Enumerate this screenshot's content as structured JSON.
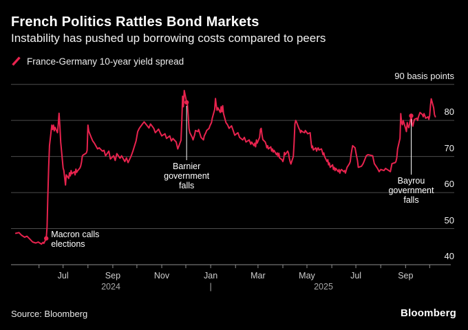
{
  "header": {
    "title": "French Politics Rattles Bond Markets",
    "subtitle": "Instability has pushed up borrowing costs compared to peers"
  },
  "legend": {
    "marker_color": "#e8234e",
    "label": "France-Germany 10-year yield spread"
  },
  "footer": {
    "source": "Source: Bloomberg",
    "brand": "Bloomberg"
  },
  "chart_data": {
    "type": "line",
    "series_name": "France-Germany 10-year yield spread",
    "unit": "basis points",
    "line_color": "#e8234e",
    "grid_color": "#4d4d4d",
    "axis_color": "#8f8f8f",
    "ylim": [
      40,
      90
    ],
    "grid": true,
    "legend_position": "top-left",
    "y_ticks": [
      {
        "value": 90,
        "label": "90 basis points"
      },
      {
        "value": 80,
        "label": "80"
      },
      {
        "value": 70,
        "label": "70"
      },
      {
        "value": 60,
        "label": "60"
      },
      {
        "value": 50,
        "label": "50"
      },
      {
        "value": 40,
        "label": "40"
      }
    ],
    "x_ticks": [
      {
        "date": "2024-06-01",
        "label": ""
      },
      {
        "date": "2024-07-01",
        "label": "Jul"
      },
      {
        "date": "2024-08-01",
        "label": ""
      },
      {
        "date": "2024-09-01",
        "label": "Sep"
      },
      {
        "date": "2024-10-01",
        "label": ""
      },
      {
        "date": "2024-11-01",
        "label": "Nov"
      },
      {
        "date": "2024-12-01",
        "label": ""
      },
      {
        "date": "2025-01-01",
        "label": "Jan"
      },
      {
        "date": "2025-02-01",
        "label": ""
      },
      {
        "date": "2025-03-01",
        "label": "Mar"
      },
      {
        "date": "2025-04-01",
        "label": ""
      },
      {
        "date": "2025-05-01",
        "label": "May"
      },
      {
        "date": "2025-06-01",
        "label": ""
      },
      {
        "date": "2025-07-01",
        "label": "Jul"
      },
      {
        "date": "2025-08-01",
        "label": ""
      },
      {
        "date": "2025-09-01",
        "label": "Sep"
      },
      {
        "date": "2025-10-01",
        "label": ""
      }
    ],
    "year_row": {
      "left": "2024",
      "divider": "|",
      "right": "2025"
    },
    "annotations": [
      {
        "id": "macron",
        "date": "2024-06-10",
        "value": 47.3,
        "lines": [
          "Macron calls",
          "elections"
        ]
      },
      {
        "id": "barnier",
        "date": "2024-12-02",
        "value": 85.0,
        "lines": [
          "Barnier",
          "government",
          "falls"
        ]
      },
      {
        "id": "bayrou",
        "date": "2025-09-08",
        "value": 81.3,
        "lines": [
          "Bayrou",
          "government",
          "falls"
        ]
      }
    ],
    "points": [
      [
        "2024-05-03",
        48.7
      ],
      [
        "2024-05-07",
        48.9
      ],
      [
        "2024-05-10",
        48.2
      ],
      [
        "2024-05-14",
        47.6
      ],
      [
        "2024-05-17",
        47.9
      ],
      [
        "2024-05-21",
        47.0
      ],
      [
        "2024-05-24",
        46.3
      ],
      [
        "2024-05-28",
        46.0
      ],
      [
        "2024-05-31",
        46.3
      ],
      [
        "2024-06-04",
        45.7
      ],
      [
        "2024-06-06",
        46.2
      ],
      [
        "2024-06-07",
        45.9
      ],
      [
        "2024-06-10",
        47.3
      ],
      [
        "2024-06-11",
        50.5
      ],
      [
        "2024-06-12",
        59.0
      ],
      [
        "2024-06-13",
        67.0
      ],
      [
        "2024-06-14",
        73.0
      ],
      [
        "2024-06-17",
        78.7
      ],
      [
        "2024-06-18",
        77.5
      ],
      [
        "2024-06-19",
        78.7
      ],
      [
        "2024-06-20",
        77.1
      ],
      [
        "2024-06-21",
        78.1
      ],
      [
        "2024-06-24",
        76.6
      ],
      [
        "2024-06-25",
        79.0
      ],
      [
        "2024-06-26",
        82.0
      ],
      [
        "2024-06-27",
        78.5
      ],
      [
        "2024-06-28",
        74.0
      ],
      [
        "2024-07-01",
        66.8
      ],
      [
        "2024-07-02",
        66.1
      ],
      [
        "2024-07-03",
        64.0
      ],
      [
        "2024-07-04",
        62.1
      ],
      [
        "2024-07-05",
        64.9
      ],
      [
        "2024-07-08",
        63.9
      ],
      [
        "2024-07-09",
        65.5
      ],
      [
        "2024-07-10",
        64.6
      ],
      [
        "2024-07-11",
        66.1
      ],
      [
        "2024-07-12",
        65.2
      ],
      [
        "2024-07-15",
        65.8
      ],
      [
        "2024-07-16",
        64.9
      ],
      [
        "2024-07-17",
        66.5
      ],
      [
        "2024-07-18",
        65.6
      ],
      [
        "2024-07-19",
        66.0
      ],
      [
        "2024-07-22",
        66.8
      ],
      [
        "2024-07-23",
        67.4
      ],
      [
        "2024-07-24",
        68.5
      ],
      [
        "2024-07-25",
        70.1
      ],
      [
        "2024-07-26",
        70.4
      ],
      [
        "2024-07-29",
        70.8
      ],
      [
        "2024-07-30",
        71.0
      ],
      [
        "2024-07-31",
        71.7
      ],
      [
        "2024-08-01",
        78.7
      ],
      [
        "2024-08-02",
        77.0
      ],
      [
        "2024-08-05",
        75.3
      ],
      [
        "2024-08-07",
        74.3
      ],
      [
        "2024-08-09",
        73.7
      ],
      [
        "2024-08-13",
        72.1
      ],
      [
        "2024-08-15",
        72.4
      ],
      [
        "2024-08-19",
        71.5
      ],
      [
        "2024-08-21",
        71.7
      ],
      [
        "2024-08-23",
        70.2
      ],
      [
        "2024-08-27",
        71.5
      ],
      [
        "2024-08-29",
        69.3
      ],
      [
        "2024-09-02",
        70.2
      ],
      [
        "2024-09-04",
        68.9
      ],
      [
        "2024-09-06",
        70.8
      ],
      [
        "2024-09-10",
        69.5
      ],
      [
        "2024-09-12",
        70.2
      ],
      [
        "2024-09-16",
        68.6
      ],
      [
        "2024-09-18",
        69.6
      ],
      [
        "2024-09-20",
        68.3
      ],
      [
        "2024-09-24",
        70.2
      ],
      [
        "2024-09-26",
        71.5
      ],
      [
        "2024-09-30",
        74.3
      ],
      [
        "2024-10-02",
        76.9
      ],
      [
        "2024-10-04",
        77.8
      ],
      [
        "2024-10-08",
        79.0
      ],
      [
        "2024-10-10",
        79.6
      ],
      [
        "2024-10-14",
        78.5
      ],
      [
        "2024-10-16",
        77.9
      ],
      [
        "2024-10-18",
        79.0
      ],
      [
        "2024-10-22",
        77.8
      ],
      [
        "2024-10-24",
        76.6
      ],
      [
        "2024-10-28",
        77.6
      ],
      [
        "2024-10-30",
        76.6
      ],
      [
        "2024-11-01",
        75.7
      ],
      [
        "2024-11-05",
        76.3
      ],
      [
        "2024-11-07",
        75.0
      ],
      [
        "2024-11-11",
        75.7
      ],
      [
        "2024-11-13",
        74.3
      ],
      [
        "2024-11-15",
        75.0
      ],
      [
        "2024-11-19",
        74.0
      ],
      [
        "2024-11-21",
        72.1
      ],
      [
        "2024-11-25",
        74.5
      ],
      [
        "2024-11-26",
        80.0
      ],
      [
        "2024-11-27",
        86.7
      ],
      [
        "2024-11-28",
        83.8
      ],
      [
        "2024-11-29",
        88.3
      ],
      [
        "2024-12-02",
        85.0
      ],
      [
        "2024-12-03",
        84.5
      ],
      [
        "2024-12-04",
        81.3
      ],
      [
        "2024-12-05",
        77.8
      ],
      [
        "2024-12-06",
        76.6
      ],
      [
        "2024-12-09",
        75.3
      ],
      [
        "2024-12-10",
        74.6
      ],
      [
        "2024-12-12",
        76.0
      ],
      [
        "2024-12-13",
        77.2
      ],
      [
        "2024-12-16",
        76.9
      ],
      [
        "2024-12-17",
        77.5
      ],
      [
        "2024-12-19",
        76.0
      ],
      [
        "2024-12-20",
        75.3
      ],
      [
        "2024-12-23",
        74.6
      ],
      [
        "2024-12-24",
        75.7
      ],
      [
        "2024-12-26",
        76.6
      ],
      [
        "2024-12-27",
        77.2
      ],
      [
        "2024-12-30",
        77.8
      ],
      [
        "2024-12-31",
        78.5
      ],
      [
        "2025-01-02",
        79.4
      ],
      [
        "2025-01-03",
        80.6
      ],
      [
        "2025-01-06",
        83.0
      ],
      [
        "2025-01-07",
        86.1
      ],
      [
        "2025-01-08",
        84.1
      ],
      [
        "2025-01-09",
        82.8
      ],
      [
        "2025-01-10",
        83.5
      ],
      [
        "2025-01-13",
        82.2
      ],
      [
        "2025-01-14",
        83.8
      ],
      [
        "2025-01-15",
        82.4
      ],
      [
        "2025-01-16",
        84.1
      ],
      [
        "2025-01-17",
        81.9
      ],
      [
        "2025-01-20",
        79.4
      ],
      [
        "2025-01-22",
        78.8
      ],
      [
        "2025-01-24",
        77.8
      ],
      [
        "2025-01-27",
        78.5
      ],
      [
        "2025-01-29",
        77.2
      ],
      [
        "2025-01-31",
        75.9
      ],
      [
        "2025-02-04",
        76.6
      ],
      [
        "2025-02-06",
        75.3
      ],
      [
        "2025-02-10",
        74.6
      ],
      [
        "2025-02-12",
        75.3
      ],
      [
        "2025-02-14",
        74.0
      ],
      [
        "2025-02-18",
        74.6
      ],
      [
        "2025-02-20",
        73.4
      ],
      [
        "2025-02-21",
        74.0
      ],
      [
        "2025-02-24",
        73.0
      ],
      [
        "2025-02-25",
        73.7
      ],
      [
        "2025-02-26",
        72.7
      ],
      [
        "2025-02-27",
        74.6
      ],
      [
        "2025-02-28",
        73.7
      ],
      [
        "2025-03-03",
        75.3
      ],
      [
        "2025-03-04",
        77.5
      ],
      [
        "2025-03-05",
        77.8
      ],
      [
        "2025-03-06",
        76.0
      ],
      [
        "2025-03-07",
        74.7
      ],
      [
        "2025-03-10",
        74.0
      ],
      [
        "2025-03-11",
        73.4
      ],
      [
        "2025-03-12",
        72.4
      ],
      [
        "2025-03-13",
        73.0
      ],
      [
        "2025-03-14",
        72.1
      ],
      [
        "2025-03-17",
        72.7
      ],
      [
        "2025-03-18",
        71.5
      ],
      [
        "2025-03-19",
        72.1
      ],
      [
        "2025-03-20",
        71.2
      ],
      [
        "2025-03-21",
        71.7
      ],
      [
        "2025-03-24",
        70.5
      ],
      [
        "2025-03-25",
        71.0
      ],
      [
        "2025-03-26",
        70.0
      ],
      [
        "2025-03-27",
        70.9
      ],
      [
        "2025-03-28",
        69.6
      ],
      [
        "2025-03-31",
        69.1
      ],
      [
        "2025-04-01",
        68.6
      ],
      [
        "2025-04-02",
        69.4
      ],
      [
        "2025-04-03",
        71.1
      ],
      [
        "2025-04-04",
        70.5
      ],
      [
        "2025-04-07",
        71.5
      ],
      [
        "2025-04-08",
        70.9
      ],
      [
        "2025-04-09",
        69.6
      ],
      [
        "2025-04-10",
        68.6
      ],
      [
        "2025-04-11",
        67.9
      ],
      [
        "2025-04-14",
        70.0
      ],
      [
        "2025-04-15",
        73.7
      ],
      [
        "2025-04-16",
        79.0
      ],
      [
        "2025-04-17",
        80.0
      ],
      [
        "2025-04-18",
        79.6
      ],
      [
        "2025-04-21",
        77.8
      ],
      [
        "2025-04-22",
        77.4
      ],
      [
        "2025-04-23",
        76.6
      ],
      [
        "2025-04-24",
        77.2
      ],
      [
        "2025-04-25",
        76.9
      ],
      [
        "2025-04-28",
        76.6
      ],
      [
        "2025-04-29",
        77.2
      ],
      [
        "2025-04-30",
        76.9
      ],
      [
        "2025-05-02",
        76.3
      ],
      [
        "2025-05-05",
        76.6
      ],
      [
        "2025-05-06",
        74.3
      ],
      [
        "2025-05-07",
        72.4
      ],
      [
        "2025-05-08",
        72.9
      ],
      [
        "2025-05-09",
        71.8
      ],
      [
        "2025-05-12",
        72.4
      ],
      [
        "2025-05-13",
        71.5
      ],
      [
        "2025-05-14",
        72.1
      ],
      [
        "2025-05-15",
        72.4
      ],
      [
        "2025-05-16",
        71.8
      ],
      [
        "2025-05-19",
        72.1
      ],
      [
        "2025-05-20",
        71.5
      ],
      [
        "2025-05-21",
        70.5
      ],
      [
        "2025-05-22",
        71.0
      ],
      [
        "2025-05-23",
        70.0
      ],
      [
        "2025-05-26",
        68.6
      ],
      [
        "2025-05-27",
        69.1
      ],
      [
        "2025-05-28",
        67.7
      ],
      [
        "2025-05-29",
        68.2
      ],
      [
        "2025-05-30",
        67.0
      ],
      [
        "2025-06-02",
        67.7
      ],
      [
        "2025-06-03",
        66.4
      ],
      [
        "2025-06-04",
        67.0
      ],
      [
        "2025-06-05",
        66.1
      ],
      [
        "2025-06-06",
        66.7
      ],
      [
        "2025-06-09",
        65.8
      ],
      [
        "2025-06-10",
        66.4
      ],
      [
        "2025-06-11",
        65.4
      ],
      [
        "2025-06-12",
        66.1
      ],
      [
        "2025-06-13",
        66.4
      ],
      [
        "2025-06-16",
        65.8
      ],
      [
        "2025-06-17",
        66.1
      ],
      [
        "2025-06-18",
        65.4
      ],
      [
        "2025-06-19",
        66.2
      ],
      [
        "2025-06-20",
        67.0
      ],
      [
        "2025-06-23",
        68.0
      ],
      [
        "2025-06-24",
        68.6
      ],
      [
        "2025-06-25",
        70.5
      ],
      [
        "2025-06-26",
        71.8
      ],
      [
        "2025-06-27",
        73.0
      ],
      [
        "2025-06-30",
        72.4
      ],
      [
        "2025-07-01",
        71.1
      ],
      [
        "2025-07-02",
        70.0
      ],
      [
        "2025-07-03",
        68.9
      ],
      [
        "2025-07-04",
        67.0
      ],
      [
        "2025-07-08",
        67.3
      ],
      [
        "2025-07-10",
        68.0
      ],
      [
        "2025-07-14",
        70.2
      ],
      [
        "2025-07-16",
        70.5
      ],
      [
        "2025-07-18",
        70.4
      ],
      [
        "2025-07-22",
        70.2
      ],
      [
        "2025-07-24",
        68.0
      ],
      [
        "2025-07-28",
        66.7
      ],
      [
        "2025-07-30",
        65.8
      ],
      [
        "2025-08-01",
        66.4
      ],
      [
        "2025-08-05",
        66.1
      ],
      [
        "2025-08-07",
        66.7
      ],
      [
        "2025-08-11",
        66.1
      ],
      [
        "2025-08-13",
        65.8
      ],
      [
        "2025-08-15",
        68.0
      ],
      [
        "2025-08-19",
        68.3
      ],
      [
        "2025-08-20",
        68.6
      ],
      [
        "2025-08-21",
        69.6
      ],
      [
        "2025-08-22",
        72.1
      ],
      [
        "2025-08-25",
        75.0
      ],
      [
        "2025-08-26",
        81.9
      ],
      [
        "2025-08-27",
        79.4
      ],
      [
        "2025-08-28",
        78.8
      ],
      [
        "2025-08-29",
        80.0
      ],
      [
        "2025-09-01",
        77.8
      ],
      [
        "2025-09-02",
        76.9
      ],
      [
        "2025-09-03",
        79.4
      ],
      [
        "2025-09-04",
        78.4
      ],
      [
        "2025-09-05",
        78.0
      ],
      [
        "2025-09-08",
        81.3
      ],
      [
        "2025-09-09",
        79.1
      ],
      [
        "2025-09-10",
        78.4
      ],
      [
        "2025-09-11",
        79.4
      ],
      [
        "2025-09-12",
        80.3
      ],
      [
        "2025-09-15",
        80.6
      ],
      [
        "2025-09-16",
        80.0
      ],
      [
        "2025-09-17",
        81.0
      ],
      [
        "2025-09-18",
        81.6
      ],
      [
        "2025-09-19",
        82.2
      ],
      [
        "2025-09-22",
        81.6
      ],
      [
        "2025-09-23",
        81.0
      ],
      [
        "2025-09-24",
        81.9
      ],
      [
        "2025-09-25",
        81.3
      ],
      [
        "2025-09-26",
        80.6
      ],
      [
        "2025-09-29",
        81.0
      ],
      [
        "2025-09-30",
        80.3
      ],
      [
        "2025-10-01",
        81.3
      ],
      [
        "2025-10-02",
        84.2
      ],
      [
        "2025-10-03",
        86.0
      ],
      [
        "2025-10-06",
        83.5
      ],
      [
        "2025-10-07",
        81.6
      ],
      [
        "2025-10-08",
        81.0
      ]
    ]
  }
}
